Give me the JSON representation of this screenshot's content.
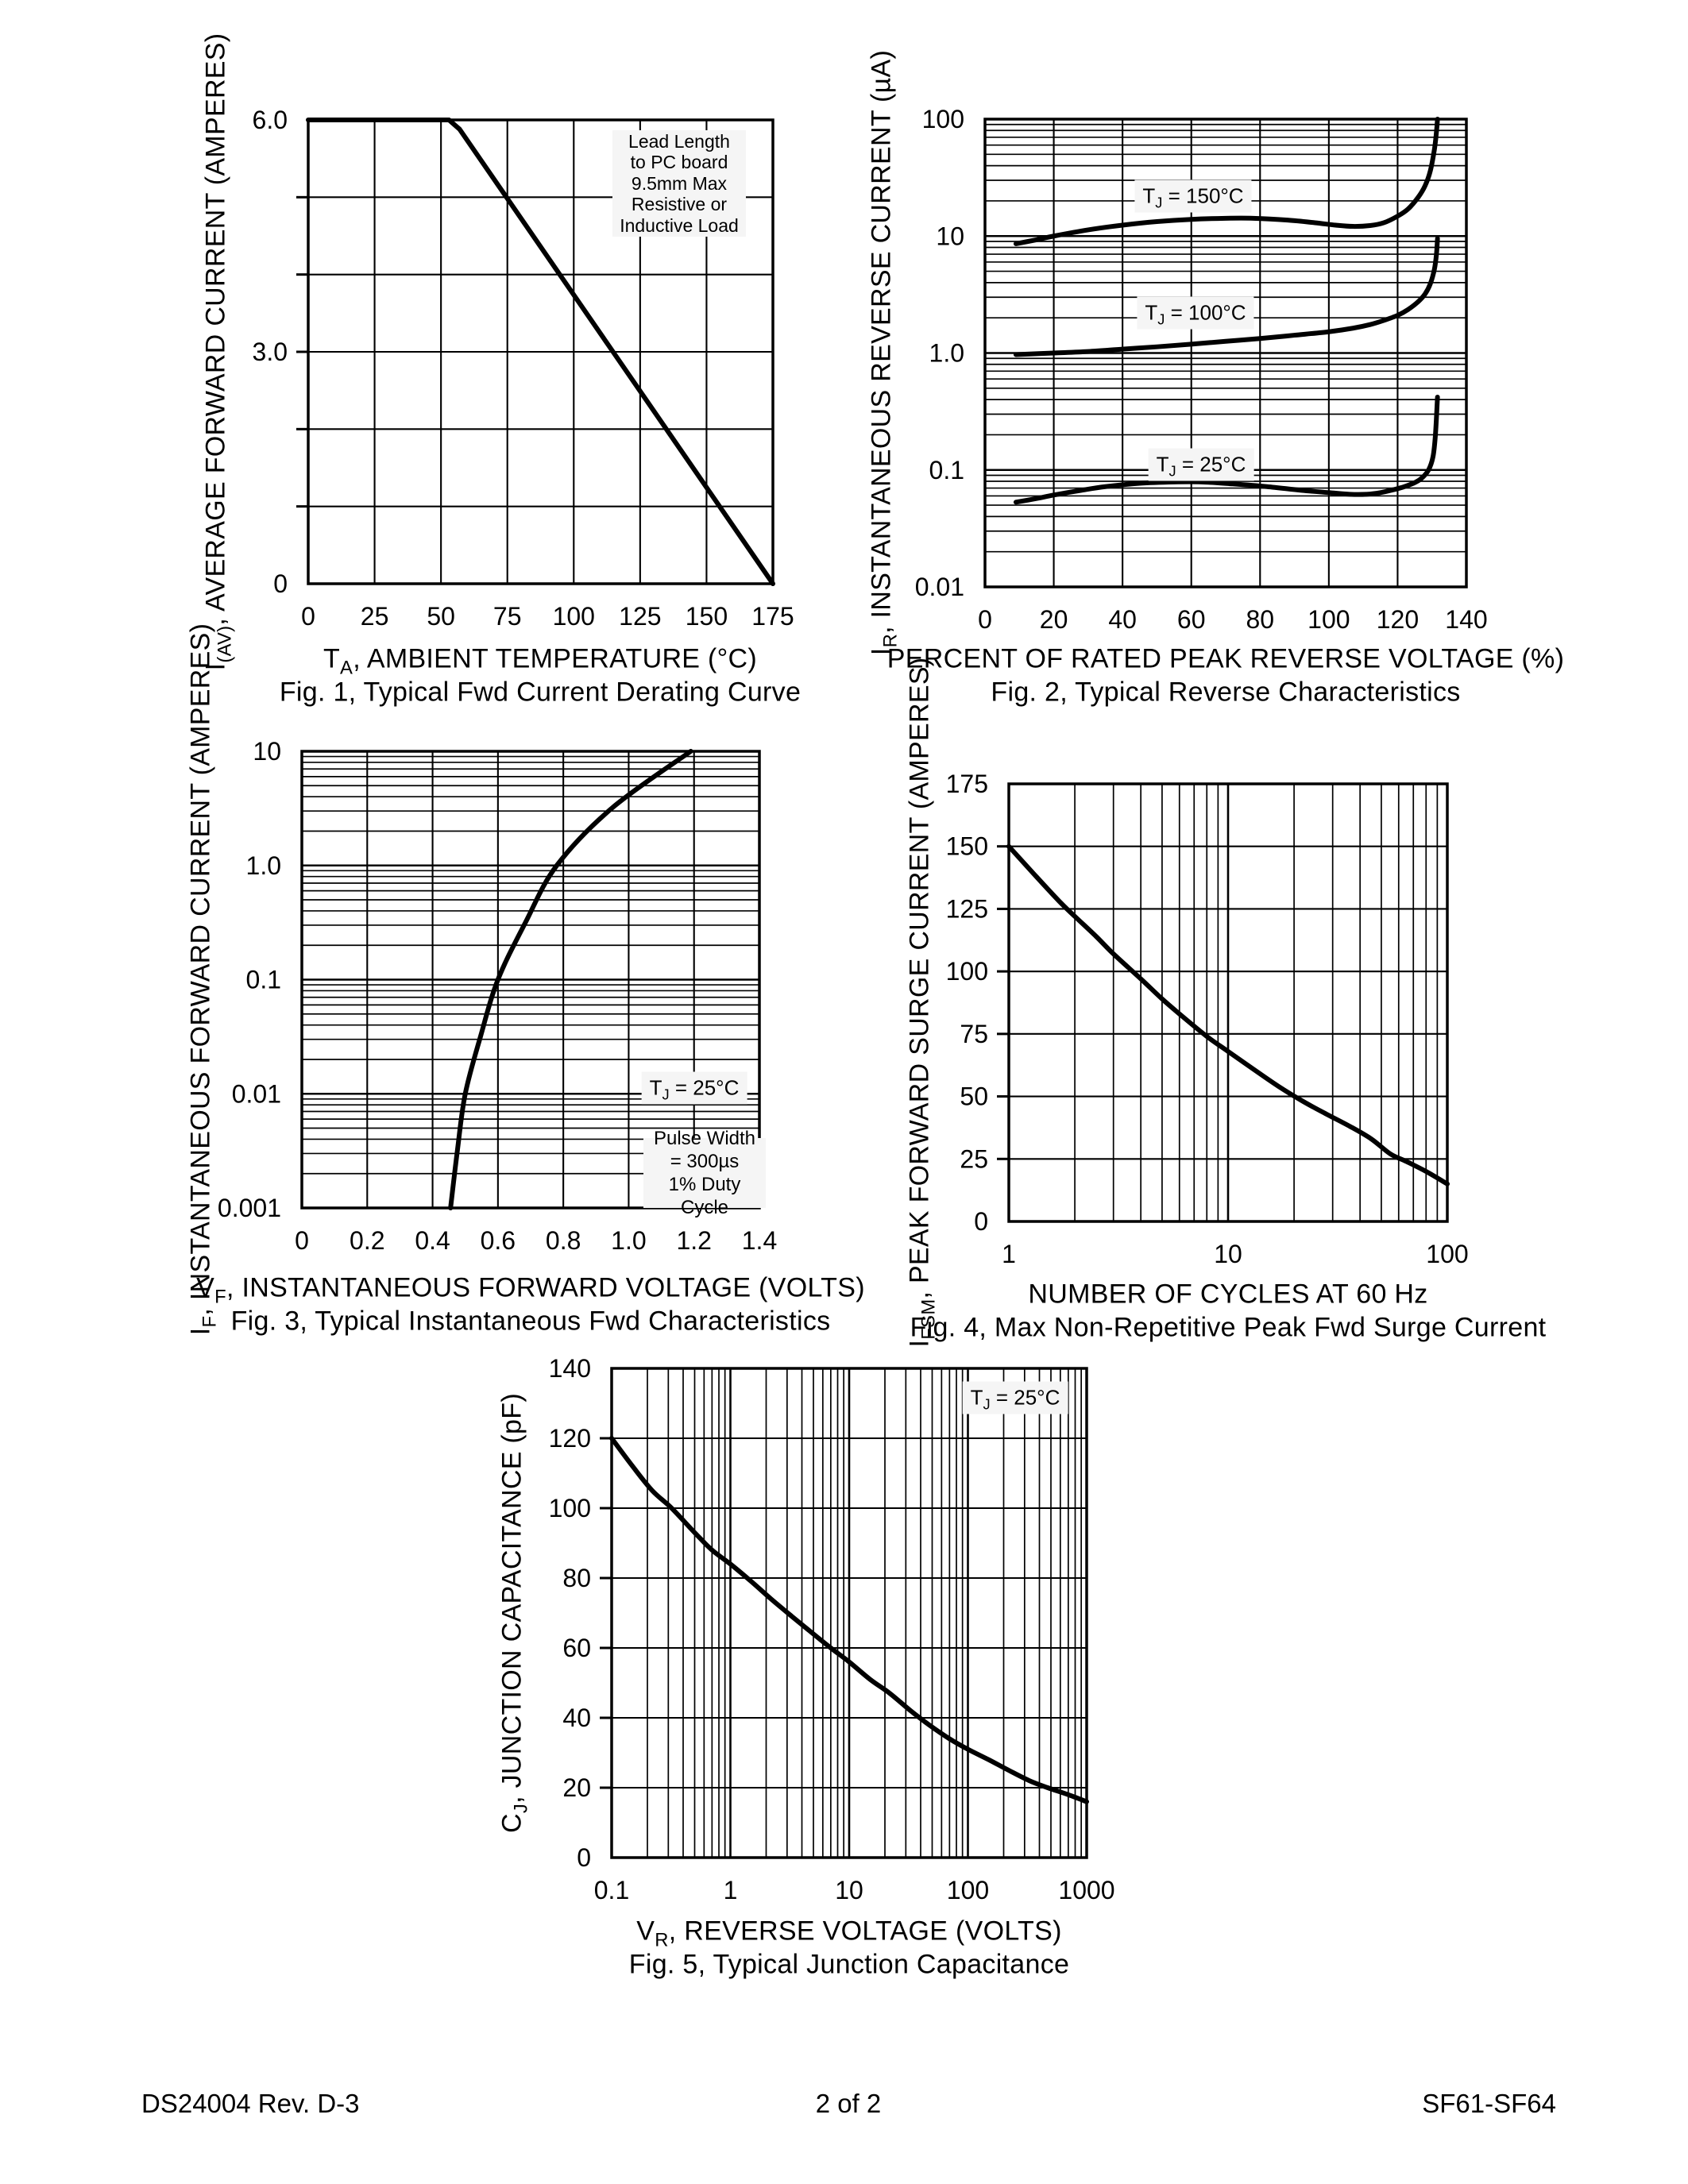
{
  "page": {
    "background": "#ffffff",
    "ink_color": "#000000",
    "label_box_bg": "#f5f5f5",
    "footer": {
      "left": "DS24004 Rev. D-3",
      "center": "2 of 2",
      "right": "SF61-SF64"
    }
  },
  "chart_data": [
    {
      "id": "fig1",
      "type": "line",
      "caption": "Fig. 1,  Typical Fwd Current Derating Curve",
      "xlabel": {
        "sym": "T",
        "sub": "A",
        "rest": ", AMBIENT TEMPERATURE (°C)"
      },
      "ylabel": {
        "sym": "I",
        "sub": "(AV)",
        "rest": ", AVERAGE FORWARD CURRENT (AMPERES)"
      },
      "x_scale": "linear",
      "x_range": [
        0,
        175
      ],
      "x_grid_step": 25,
      "x_ticks": {
        "values": [
          0,
          25,
          50,
          75,
          100,
          125,
          150,
          175
        ],
        "labels": [
          "0",
          "25",
          "50",
          "75",
          "100",
          "125",
          "150",
          "175"
        ]
      },
      "y_scale": "linear",
      "y_range": [
        0,
        6
      ],
      "y_grid_step": 1,
      "y_ticks": {
        "values": [
          6,
          3,
          0
        ],
        "labels": [
          "6.0",
          "3.0",
          "0"
        ]
      },
      "grid": true,
      "annotation": {
        "lines": [
          "Lead Length",
          "to PC board",
          "9.5mm Max",
          "Resistive or",
          "Inductive Load"
        ]
      },
      "series": [
        {
          "name": "derating-curve",
          "smooth": false,
          "points": [
            [
              0,
              6
            ],
            [
              53,
              6
            ],
            [
              57,
              5.88
            ],
            [
              175,
              0
            ]
          ]
        }
      ],
      "px": {
        "l": 388,
        "t": 151,
        "r": 973,
        "b": 735,
        "xlab_y": 787,
        "ylab_x": 362
      }
    },
    {
      "id": "fig2",
      "type": "line",
      "caption": "Fig. 2,  Typical Reverse Characteristics",
      "xlabel": {
        "sym": "",
        "sub": "",
        "rest": "PERCENT OF RATED PEAK REVERSE VOLTAGE (%)"
      },
      "ylabel": {
        "sym": "I",
        "sub": "R",
        "rest": ", INSTANTANEOUS REVERSE CURRENT (µA)"
      },
      "x_scale": "linear",
      "x_range": [
        0,
        140
      ],
      "x_grid_step": 20,
      "x_ticks": {
        "values": [
          0,
          20,
          40,
          60,
          80,
          100,
          120,
          140
        ],
        "labels": [
          "0",
          "20",
          "40",
          "60",
          "80",
          "100",
          "120",
          "140"
        ]
      },
      "y_scale": "log",
      "y_range": [
        0.01,
        100
      ],
      "y_ticks": {
        "values": [
          100,
          10,
          1,
          0.1,
          0.01
        ],
        "labels": [
          "100",
          "10",
          "1.0",
          "0.1",
          "0.01"
        ]
      },
      "grid": true,
      "curve_labels": [
        {
          "sym": "T",
          "sub": "J",
          "rest": " = 150°C"
        },
        {
          "sym": "T",
          "sub": "J",
          "rest": " = 100°C"
        },
        {
          "sym": "T",
          "sub": "J",
          "rest": " = 25°C"
        }
      ],
      "series": [
        {
          "name": "tj-150c",
          "smooth": true,
          "points": [
            [
              9,
              8.6
            ],
            [
              15,
              9.3
            ],
            [
              20,
              10
            ],
            [
              30,
              11.3
            ],
            [
              40,
              12.4
            ],
            [
              50,
              13.3
            ],
            [
              60,
              13.9
            ],
            [
              70,
              14.2
            ],
            [
              78,
              14.2
            ],
            [
              88,
              13.7
            ],
            [
              96,
              13
            ],
            [
              102,
              12.4
            ],
            [
              107,
              12.1
            ],
            [
              112,
              12.3
            ],
            [
              116,
              13
            ],
            [
              120,
              14.8
            ],
            [
              123,
              17
            ],
            [
              126,
              21.5
            ],
            [
              128,
              27
            ],
            [
              129.5,
              36
            ],
            [
              130.7,
              55
            ],
            [
              131.3,
              78
            ],
            [
              131.6,
              100
            ]
          ]
        },
        {
          "name": "tj-100c",
          "smooth": true,
          "points": [
            [
              9,
              0.97
            ],
            [
              20,
              1.0
            ],
            [
              30,
              1.03
            ],
            [
              40,
              1.08
            ],
            [
              50,
              1.13
            ],
            [
              60,
              1.19
            ],
            [
              70,
              1.26
            ],
            [
              80,
              1.33
            ],
            [
              90,
              1.42
            ],
            [
              100,
              1.52
            ],
            [
              107,
              1.63
            ],
            [
              112,
              1.75
            ],
            [
              116,
              1.9
            ],
            [
              120,
              2.1
            ],
            [
              123,
              2.35
            ],
            [
              126,
              2.75
            ],
            [
              128,
              3.2
            ],
            [
              129.5,
              3.9
            ],
            [
              130.7,
              5.2
            ],
            [
              131.3,
              7
            ],
            [
              131.6,
              9.5
            ]
          ]
        },
        {
          "name": "tj-25c",
          "smooth": true,
          "points": [
            [
              9,
              0.053
            ],
            [
              15,
              0.057
            ],
            [
              20,
              0.061
            ],
            [
              28,
              0.067
            ],
            [
              35,
              0.072
            ],
            [
              45,
              0.077
            ],
            [
              55,
              0.079
            ],
            [
              63,
              0.079
            ],
            [
              72,
              0.076
            ],
            [
              82,
              0.072
            ],
            [
              92,
              0.067
            ],
            [
              100,
              0.064
            ],
            [
              106,
              0.062
            ],
            [
              111,
              0.062
            ],
            [
              115,
              0.064
            ],
            [
              119,
              0.068
            ],
            [
              122,
              0.072
            ],
            [
              125,
              0.078
            ],
            [
              127,
              0.085
            ],
            [
              129,
              0.1
            ],
            [
              130.3,
              0.13
            ],
            [
              131,
              0.2
            ],
            [
              131.6,
              0.42
            ]
          ]
        }
      ],
      "px": {
        "l": 1240,
        "t": 150,
        "r": 1846,
        "b": 739,
        "xlab_y": 791,
        "ylab_x": 1214
      }
    },
    {
      "id": "fig3",
      "type": "line",
      "caption": "Fig. 3,  Typical Instantaneous Fwd Characteristics",
      "xlabel": {
        "sym": "V",
        "sub": "F",
        "rest": ", INSTANTANEOUS FORWARD VOLTAGE (VOLTS)"
      },
      "ylabel": {
        "sym": "I",
        "sub": "F",
        "rest": ", INSTANTANEOUS FORWARD CURRENT (AMPERES)"
      },
      "x_scale": "linear",
      "x_range": [
        0,
        1.4
      ],
      "x_grid_step": 0.2,
      "x_ticks": {
        "values": [
          0,
          0.2,
          0.4,
          0.6,
          0.8,
          1.0,
          1.2,
          1.4
        ],
        "labels": [
          "0",
          "0.2",
          "0.4",
          "0.6",
          "0.8",
          "1.0",
          "1.2",
          "1.4"
        ]
      },
      "y_scale": "log",
      "y_range": [
        0.001,
        10
      ],
      "y_ticks": {
        "values": [
          10,
          1,
          0.1,
          0.01,
          0.001
        ],
        "labels": [
          "10",
          "1.0",
          "0.1",
          "0.01",
          "0.001"
        ]
      },
      "grid": true,
      "annotation_tj": {
        "sym": "T",
        "sub": "J",
        "rest": " = 25°C"
      },
      "annotation_pulse": {
        "lines": [
          "Pulse Width",
          "= 300µs",
          "1% Duty Cycle"
        ]
      },
      "series": [
        {
          "name": "fwd-characteristic",
          "smooth": true,
          "points": [
            [
              0.455,
              0.001
            ],
            [
              0.476,
              0.0032
            ],
            [
              0.5,
              0.01
            ],
            [
              0.547,
              0.032
            ],
            [
              0.6,
              0.1
            ],
            [
              0.685,
              0.32
            ],
            [
              0.78,
              1.0
            ],
            [
              0.95,
              3.2
            ],
            [
              1.19,
              10
            ]
          ]
        }
      ],
      "px": {
        "l": 380,
        "t": 946,
        "r": 956,
        "b": 1521,
        "xlab_y": 1573,
        "ylab_x": 354
      }
    },
    {
      "id": "fig4",
      "type": "line",
      "caption": "Fig. 4,  Max Non-Repetitive Peak Fwd Surge Current",
      "xlabel": {
        "sym": "",
        "sub": "",
        "rest": "NUMBER OF CYCLES AT 60 Hz"
      },
      "ylabel": {
        "sym": "I",
        "sub": "FSM",
        "rest": ", PEAK FORWARD SURGE CURRENT (AMPERES)"
      },
      "x_scale": "log",
      "x_range": [
        1,
        100
      ],
      "x_ticks": {
        "values": [
          1,
          10,
          100
        ],
        "labels": [
          "1",
          "10",
          "100"
        ]
      },
      "y_scale": "linear",
      "y_range": [
        0,
        175
      ],
      "y_grid_step": 25,
      "y_ticks": {
        "values": [
          175,
          150,
          125,
          100,
          75,
          50,
          25,
          0
        ],
        "labels": [
          "175",
          "150",
          "125",
          "100",
          "75",
          "50",
          "25",
          "0"
        ]
      },
      "grid": true,
      "series": [
        {
          "name": "surge-current",
          "smooth": true,
          "points": [
            [
              1,
              150
            ],
            [
              1.3,
              139
            ],
            [
              1.7,
              128
            ],
            [
              2,
              122
            ],
            [
              2.5,
              114
            ],
            [
              3,
              107
            ],
            [
              4,
              97
            ],
            [
              5,
              89
            ],
            [
              6,
              83
            ],
            [
              8,
              74
            ],
            [
              10,
              68
            ],
            [
              13,
              61
            ],
            [
              17,
              54
            ],
            [
              22,
              48
            ],
            [
              28,
              43
            ],
            [
              36,
              38
            ],
            [
              45,
              33
            ],
            [
              55,
              27
            ],
            [
              65,
              24
            ],
            [
              80,
              20
            ],
            [
              100,
              15
            ]
          ]
        }
      ],
      "px": {
        "l": 1270,
        "t": 987,
        "r": 1822,
        "b": 1538,
        "xlab_y": 1590,
        "ylab_x": 1244
      }
    },
    {
      "id": "fig5",
      "type": "line",
      "caption": "Fig. 5,  Typical Junction Capacitance",
      "xlabel": {
        "sym": "V",
        "sub": "R",
        "rest": ", REVERSE VOLTAGE (VOLTS)"
      },
      "ylabel": {
        "sym": "C",
        "sub": "J",
        "rest": ", JUNCTION CAPACITANCE (pF)"
      },
      "x_scale": "log",
      "x_range": [
        0.1,
        1000
      ],
      "x_ticks": {
        "values": [
          0.1,
          1,
          10,
          100,
          1000
        ],
        "labels": [
          "0.1",
          "1",
          "10",
          "100",
          "1000"
        ]
      },
      "y_scale": "linear",
      "y_range": [
        0,
        140
      ],
      "y_grid_step": 20,
      "y_ticks": {
        "values": [
          140,
          120,
          100,
          80,
          60,
          40,
          20,
          0
        ],
        "labels": [
          "140",
          "120",
          "100",
          "80",
          "60",
          "40",
          "20",
          "0"
        ]
      },
      "grid": true,
      "annotation_tj": {
        "sym": "T",
        "sub": "J",
        "rest": " = 25°C"
      },
      "series": [
        {
          "name": "junction-capacitance",
          "smooth": true,
          "points": [
            [
              0.1,
              120
            ],
            [
              0.15,
              112
            ],
            [
              0.22,
              105
            ],
            [
              0.32,
              100
            ],
            [
              0.5,
              93
            ],
            [
              0.7,
              88
            ],
            [
              1,
              84
            ],
            [
              1.5,
              79
            ],
            [
              2.2,
              74
            ],
            [
              3.3,
              69
            ],
            [
              5,
              64
            ],
            [
              7,
              60
            ],
            [
              10,
              56
            ],
            [
              15,
              51
            ],
            [
              22,
              47
            ],
            [
              33,
              42
            ],
            [
              47,
              38
            ],
            [
              70,
              34
            ],
            [
              100,
              31
            ],
            [
              150,
              28
            ],
            [
              220,
              25
            ],
            [
              330,
              22
            ],
            [
              470,
              20
            ],
            [
              700,
              18
            ],
            [
              1000,
              16
            ]
          ]
        }
      ],
      "px": {
        "l": 770,
        "t": 1723,
        "r": 1368,
        "b": 2339,
        "xlab_y": 2391,
        "ylab_x": 744
      }
    }
  ]
}
